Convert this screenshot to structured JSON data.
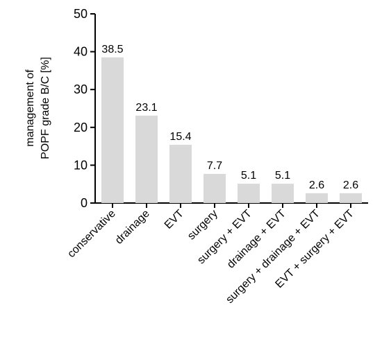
{
  "chart_data": {
    "type": "bar",
    "ylabel": [
      "management of",
      "POPF grade B/C [%]"
    ],
    "categories": [
      "conservative",
      "drainage",
      "EVT",
      "surgery",
      "surgery + EVT",
      "drainage + EVT",
      "surgery + drainage + EVT",
      "EVT + surgery + EVT"
    ],
    "values": [
      38.5,
      23.1,
      15.4,
      7.7,
      5.1,
      5.1,
      2.6,
      2.6
    ],
    "color": "#d9d9d9",
    "ylim": [
      0,
      50
    ],
    "yticks": [
      0,
      10,
      20,
      30,
      40,
      50
    ],
    "grid": false
  }
}
